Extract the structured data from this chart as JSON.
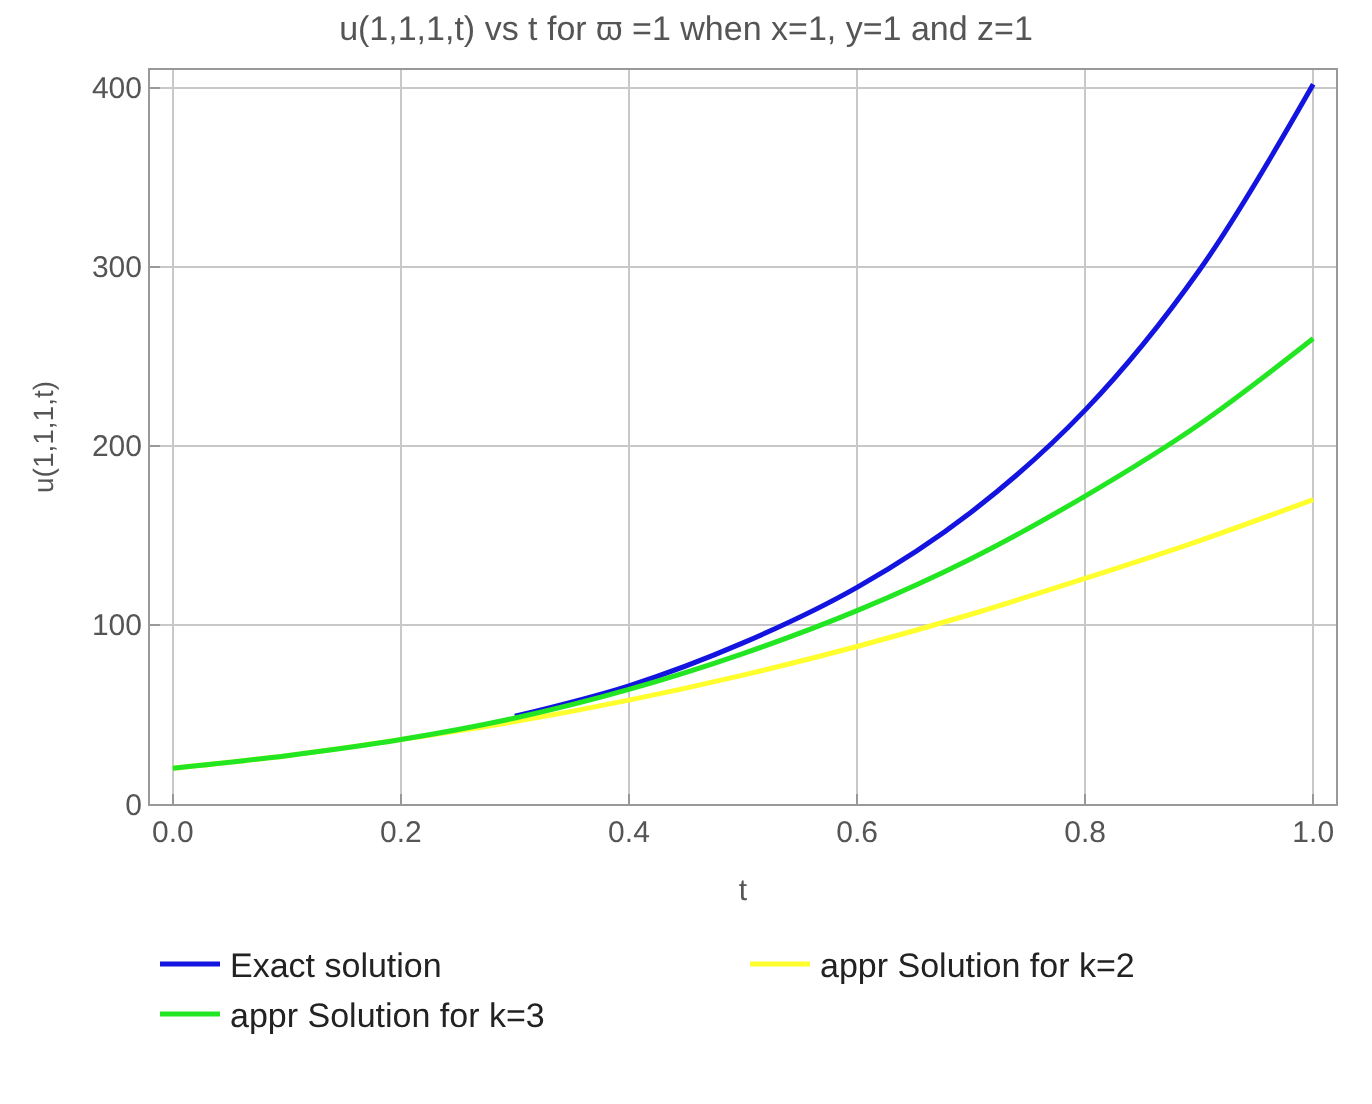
{
  "chart_data": {
    "type": "line",
    "title": "u(1,1,1,t) vs t for ϖ =1 when x=1, y=1 and z=1",
    "xlabel": "t",
    "ylabel": "u(1,1,1,t)",
    "x": [
      0,
      0.1,
      0.2,
      0.3,
      0.4,
      0.5,
      0.6,
      0.7,
      0.8,
      0.9,
      1.0
    ],
    "series": [
      {
        "name": "Exact solution",
        "color": "#1414e0",
        "values": [
          null,
          null,
          null,
          49,
          66,
          90,
          121,
          163,
          220,
          298,
          402
        ]
      },
      {
        "name": "appr Solution for k=2",
        "color": "#ffff2e",
        "values": [
          20,
          27,
          36,
          46,
          58,
          72,
          88,
          106,
          126,
          147,
          170
        ]
      },
      {
        "name": "appr Solution for k=3",
        "color": "#22e622",
        "values": [
          20,
          27,
          36,
          48,
          64,
          84,
          108,
          137,
          172,
          212,
          260
        ]
      }
    ],
    "xlim": [
      -0.02,
      1.02
    ],
    "ylim": [
      0,
      410
    ],
    "xticks": [
      {
        "value": 0,
        "label": "0.0"
      },
      0.2,
      0.4,
      0.6,
      0.8,
      {
        "value": 1,
        "label": "1.0"
      }
    ],
    "yticks": [
      0,
      100,
      200,
      300,
      400
    ],
    "grid": true,
    "legend": "bottom",
    "marker": "none",
    "line_style": "solid"
  }
}
